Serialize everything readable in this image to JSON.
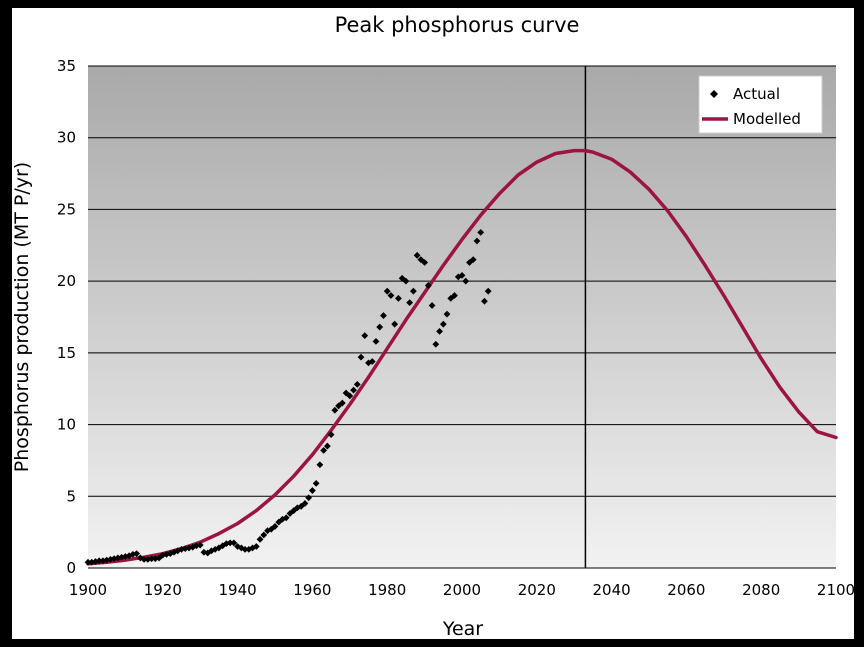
{
  "chart_data": {
    "type": "line",
    "title": "Peak phosphorus curve",
    "xlabel": "Year",
    "ylabel": "Phosphorus production (MT P/yr)",
    "xlim": [
      1900,
      2100
    ],
    "ylim": [
      0,
      35
    ],
    "xticks": [
      1900,
      1920,
      1940,
      1960,
      1980,
      2000,
      2020,
      2040,
      2060,
      2080,
      2100
    ],
    "yticks": [
      0,
      5,
      10,
      15,
      20,
      25,
      30,
      35
    ],
    "grid": "horizontal",
    "legend_position": "top-right",
    "peak_marker_year": 2033,
    "colors": {
      "modelled": "#9b1540",
      "actual": "#000000",
      "plot_bg_top": "#a9a9a9",
      "plot_bg_bottom": "#f2f2f2"
    },
    "series": [
      {
        "name": "Actual",
        "kind": "scatter",
        "x": [
          1900,
          1901,
          1902,
          1903,
          1904,
          1905,
          1906,
          1907,
          1908,
          1909,
          1910,
          1911,
          1912,
          1913,
          1914,
          1915,
          1916,
          1917,
          1918,
          1919,
          1920,
          1921,
          1922,
          1923,
          1924,
          1925,
          1926,
          1927,
          1928,
          1929,
          1930,
          1931,
          1932,
          1933,
          1934,
          1935,
          1936,
          1937,
          1938,
          1939,
          1940,
          1941,
          1942,
          1943,
          1944,
          1945,
          1946,
          1947,
          1948,
          1949,
          1950,
          1951,
          1952,
          1953,
          1954,
          1955,
          1956,
          1957,
          1958,
          1959,
          1960,
          1961,
          1962,
          1963,
          1964,
          1965,
          1966,
          1967,
          1968,
          1969,
          1970,
          1971,
          1972,
          1973,
          1974,
          1975,
          1976,
          1977,
          1978,
          1979,
          1980,
          1981,
          1982,
          1983,
          1984,
          1985,
          1986,
          1987,
          1988,
          1989,
          1990,
          1991,
          1992,
          1993,
          1994,
          1995,
          1996,
          1997,
          1998,
          1999,
          2000,
          2001,
          2002,
          2003,
          2004,
          2005,
          2006,
          2007
        ],
        "y": [
          0.4,
          0.4,
          0.45,
          0.5,
          0.5,
          0.55,
          0.6,
          0.65,
          0.7,
          0.75,
          0.8,
          0.85,
          0.95,
          1.0,
          0.7,
          0.6,
          0.6,
          0.65,
          0.65,
          0.7,
          0.9,
          0.95,
          1.0,
          1.1,
          1.2,
          1.3,
          1.35,
          1.4,
          1.45,
          1.55,
          1.6,
          1.1,
          1.05,
          1.2,
          1.3,
          1.4,
          1.55,
          1.7,
          1.75,
          1.75,
          1.5,
          1.4,
          1.3,
          1.3,
          1.4,
          1.5,
          2.0,
          2.3,
          2.6,
          2.7,
          2.9,
          3.2,
          3.4,
          3.5,
          3.8,
          4.0,
          4.2,
          4.3,
          4.5,
          4.9,
          5.4,
          5.9,
          7.2,
          8.2,
          8.5,
          9.3,
          11.0,
          11.3,
          11.5,
          12.2,
          12.0,
          12.4,
          12.8,
          14.7,
          16.2,
          14.3,
          14.4,
          15.8,
          16.8,
          17.6,
          19.3,
          19.0,
          17.0,
          18.8,
          20.2,
          20.0,
          18.5,
          19.3,
          21.8,
          21.5,
          21.3,
          19.7,
          18.3,
          15.6,
          16.5,
          17.0,
          17.7,
          18.8,
          19.0,
          20.3,
          20.4,
          20.0,
          21.3,
          21.5,
          22.8,
          23.4,
          18.6,
          19.3
        ]
      },
      {
        "name": "Modelled",
        "kind": "line",
        "x": [
          1900,
          1905,
          1910,
          1915,
          1920,
          1925,
          1930,
          1935,
          1940,
          1945,
          1950,
          1955,
          1960,
          1965,
          1970,
          1975,
          1980,
          1985,
          1990,
          1995,
          2000,
          2005,
          2010,
          2015,
          2020,
          2025,
          2030,
          2033,
          2035,
          2040,
          2045,
          2050,
          2055,
          2060,
          2065,
          2070,
          2075,
          2080,
          2085,
          2090,
          2095,
          2100
        ],
        "y": [
          0.3,
          0.4,
          0.55,
          0.75,
          1.0,
          1.35,
          1.8,
          2.4,
          3.1,
          4.0,
          5.1,
          6.4,
          7.9,
          9.6,
          11.4,
          13.3,
          15.3,
          17.3,
          19.2,
          21.1,
          22.9,
          24.6,
          26.1,
          27.4,
          28.3,
          28.9,
          29.1,
          29.1,
          29.0,
          28.5,
          27.6,
          26.4,
          24.9,
          23.1,
          21.1,
          19.0,
          16.8,
          14.6,
          12.6,
          10.9,
          9.5,
          9.1
        ]
      }
    ]
  }
}
